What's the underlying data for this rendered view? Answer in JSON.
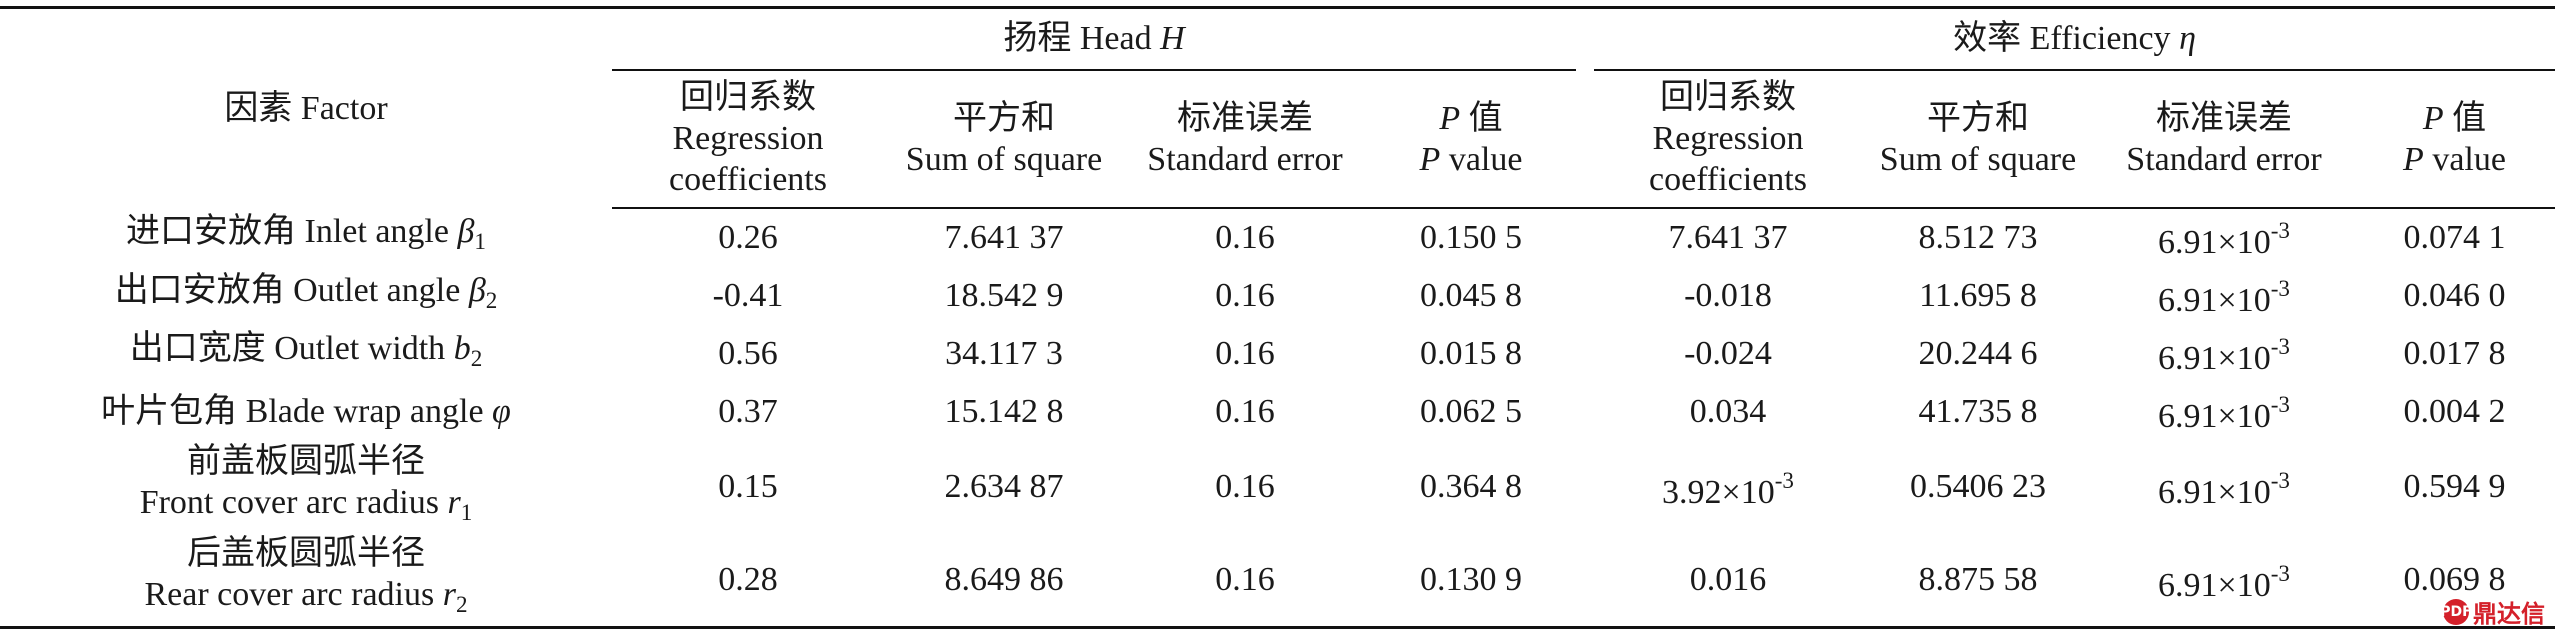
{
  "header": {
    "factor_label": "因素 Factor",
    "head_group": "扬程 Head",
    "head_symbol": "H",
    "eff_group": "效率 Efficiency",
    "eff_symbol": "η",
    "cols": {
      "reg_cn": "回归系数",
      "reg_en1": "Regression",
      "reg_en2": "coefficients",
      "ss_cn": "平方和",
      "ss_en": "Sum of square",
      "se_cn": "标准误差",
      "se_en": "Standard error",
      "p_sym": "P",
      "p_cn": "值",
      "p_sym2": "P",
      "p_en": "value"
    }
  },
  "rows": [
    {
      "factor": "进口安放角  Inlet angle ",
      "sym": "β",
      "sub": "1",
      "h_reg": "0.26",
      "h_ss": "7.641 37",
      "h_se": "0.16",
      "h_p": "0.150 5",
      "e_reg": "7.641 37",
      "e_ss": "8.512 73",
      "e_se_base": "6.91×10",
      "e_se_exp": "-3",
      "e_p": "0.074 1"
    },
    {
      "factor": "出口安放角  Outlet angle ",
      "sym": "β",
      "sub": "2",
      "h_reg": "-0.41",
      "h_ss": "18.542 9",
      "h_se": "0.16",
      "h_p": "0.045 8",
      "e_reg": "-0.018",
      "e_ss": "11.695 8",
      "e_se_base": "6.91×10",
      "e_se_exp": "-3",
      "e_p": "0.046 0"
    },
    {
      "factor": "出口宽度  Outlet width ",
      "sym": "b",
      "sub": "2",
      "h_reg": "0.56",
      "h_ss": "34.117 3",
      "h_se": "0.16",
      "h_p": "0.015 8",
      "e_reg": "-0.024",
      "e_ss": "20.244 6",
      "e_se_base": "6.91×10",
      "e_se_exp": "-3",
      "e_p": "0.017 8"
    },
    {
      "factor": "叶片包角  Blade wrap angle ",
      "sym": "φ",
      "sub": "",
      "h_reg": "0.37",
      "h_ss": "15.142 8",
      "h_se": "0.16",
      "h_p": "0.062 5",
      "e_reg": "0.034",
      "e_ss": "41.735 8",
      "e_se_base": "6.91×10",
      "e_se_exp": "-3",
      "e_p": "0.004 2"
    },
    {
      "factor_cn": "前盖板圆弧半径",
      "factor_en": "Front cover arc radius ",
      "sym": "r",
      "sub": "1",
      "h_reg": "0.15",
      "h_ss": "2.634 87",
      "h_se": "0.16",
      "h_p": "0.364 8",
      "e_reg_base": "3.92×10",
      "e_reg_exp": "-3",
      "e_ss": "0.5406 23",
      "e_se_base": "6.91×10",
      "e_se_exp": "-3",
      "e_p": "0.594 9"
    },
    {
      "factor_cn": "后盖板圆弧半径",
      "factor_en": "Rear cover arc radius ",
      "sym": "r",
      "sub": "2",
      "h_reg": "0.28",
      "h_ss": "8.649 86",
      "h_se": "0.16",
      "h_p": "0.130 9",
      "e_reg": "0.016",
      "e_ss": "8.875 58",
      "e_se_base": "6.91×10",
      "e_se_exp": "-3",
      "e_p": "0.069 8"
    }
  ],
  "watermark": {
    "logo_text": "PDF",
    "text": "鼎达信"
  }
}
